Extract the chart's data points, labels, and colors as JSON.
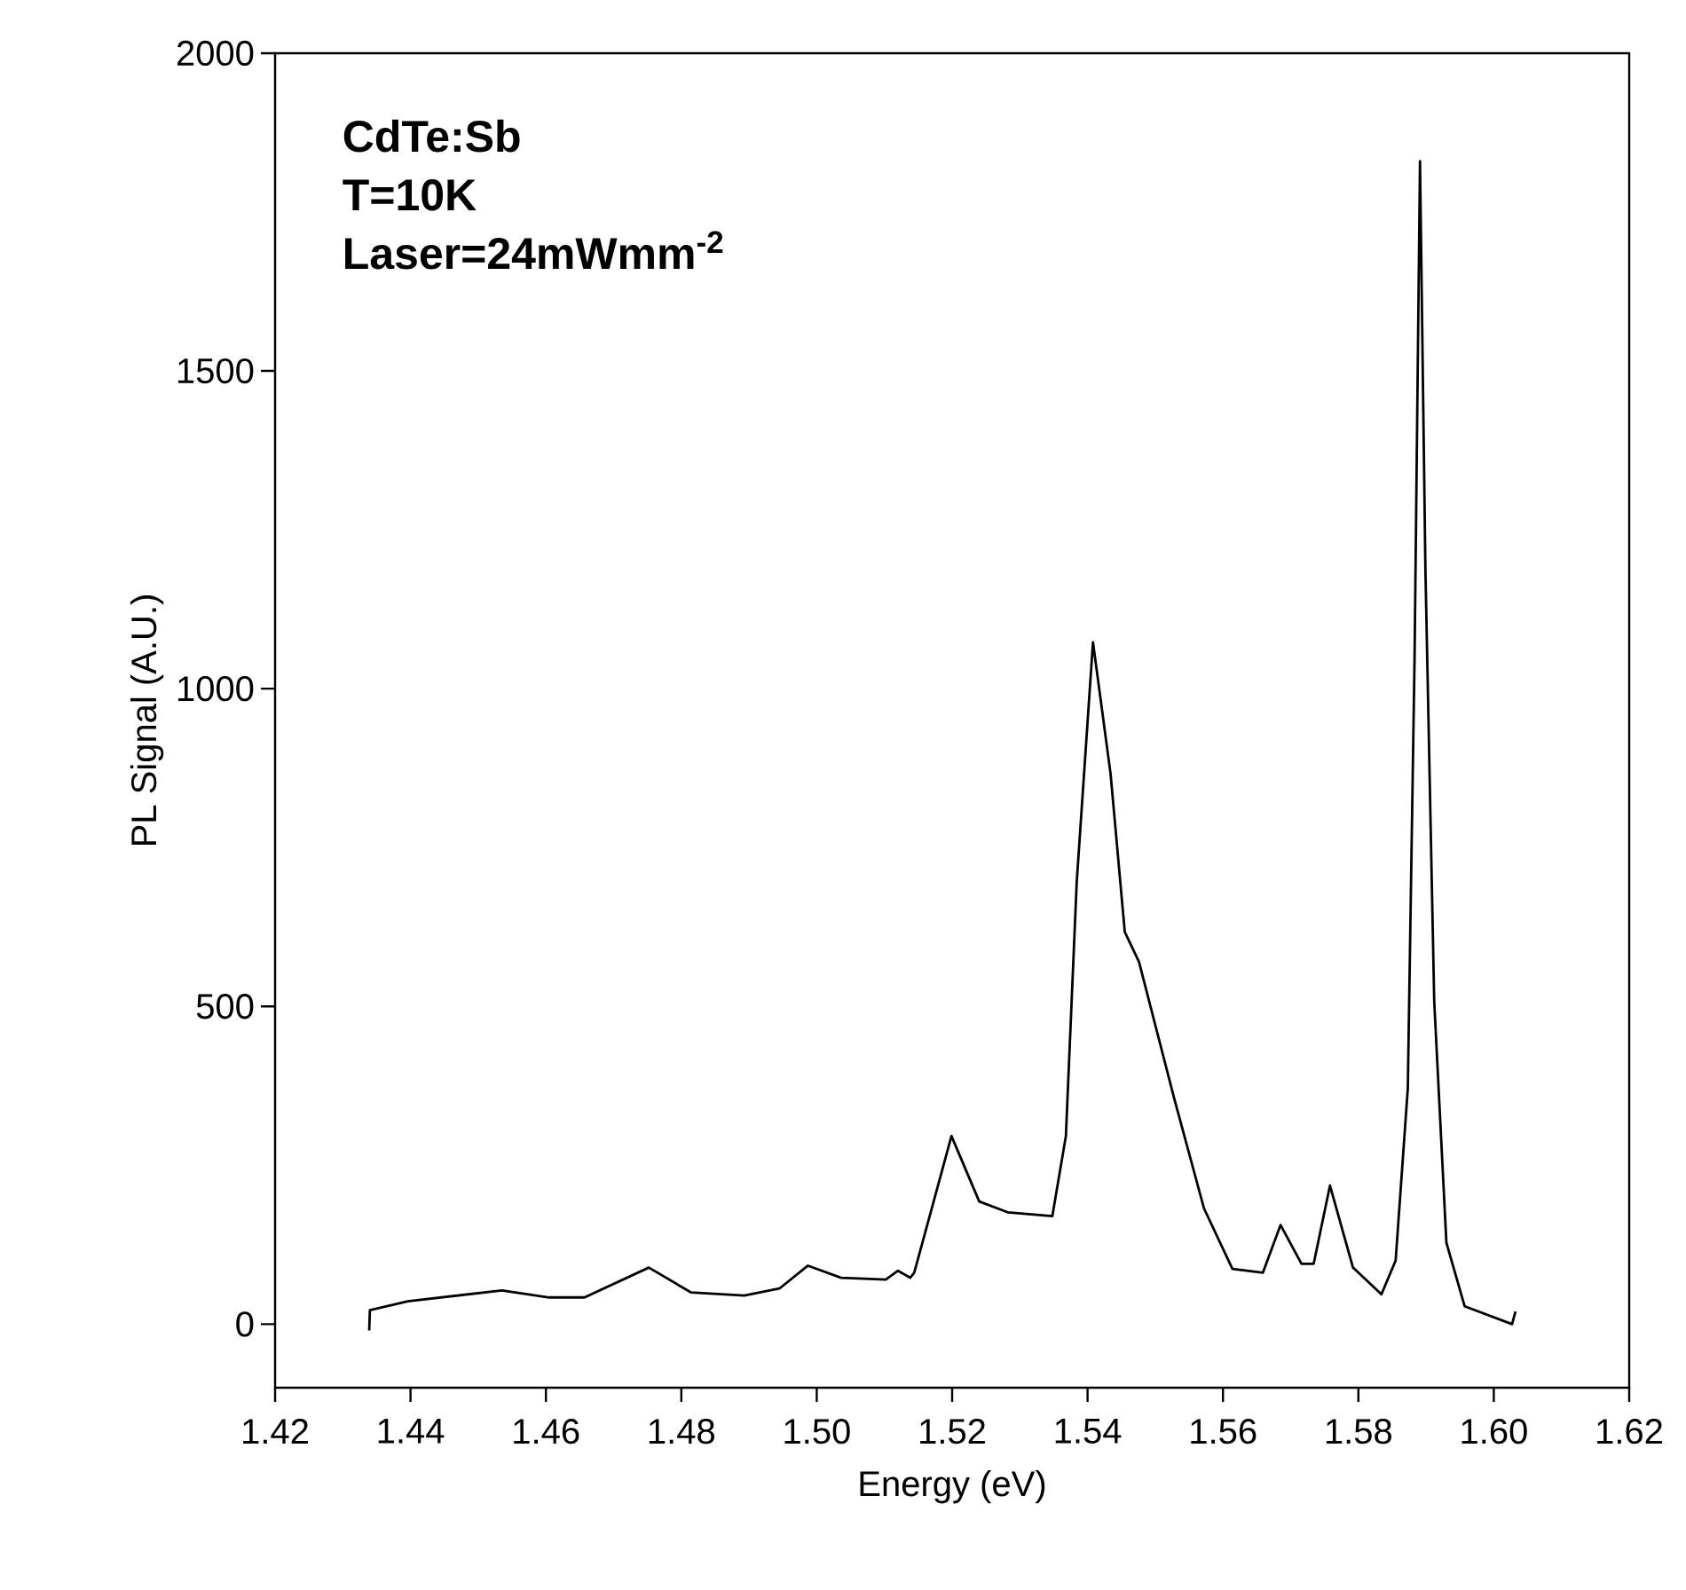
{
  "chart_data": {
    "type": "line",
    "xlabel": "Energy (eV)",
    "ylabel": "PL Signal (A.U.)",
    "annotations": [
      "CdTe:Sb",
      "T=10K",
      "Laser=24mWmm$^{-2}$"
    ],
    "xlim": [
      1.42,
      1.62
    ],
    "ylim": [
      -100,
      2000
    ],
    "xticks": [
      1.42,
      1.44,
      1.46,
      1.48,
      {
        "value": 1.5,
        "label": "1.50"
      },
      1.52,
      1.54,
      1.56,
      1.58,
      {
        "value": 1.6,
        "label": "1.60"
      },
      1.62
    ],
    "yticks": [
      0,
      500,
      1000,
      1500,
      2000
    ],
    "x": [
      1.4339,
      1.434,
      1.4396,
      1.4535,
      1.4605,
      1.4657,
      1.4752,
      1.4814,
      1.4893,
      1.4945,
      1.4987,
      1.5036,
      1.5102,
      1.512,
      1.5138,
      1.5144,
      1.5199,
      1.524,
      1.5282,
      1.5348,
      1.5368,
      1.5384,
      1.5408,
      1.5434,
      1.5455,
      1.5476,
      1.5528,
      1.5572,
      1.5614,
      1.5659,
      1.5685,
      1.5716,
      1.5734,
      1.5758,
      1.5792,
      1.5834,
      1.5855,
      1.5873,
      1.5883,
      1.5891,
      1.5899,
      1.5912,
      1.593,
      1.5957,
      1.6027,
      1.6032
    ],
    "values": [
      -10,
      22,
      36,
      53,
      42,
      42,
      89,
      50,
      45,
      56,
      92,
      73,
      70,
      84,
      73,
      81,
      296,
      193,
      176,
      170,
      296,
      696,
      1073,
      866,
      617,
      570,
      355,
      182,
      87,
      81,
      156,
      95,
      95,
      218,
      89,
      47,
      100,
      371,
      1050,
      1830,
      1187,
      508,
      128,
      28,
      0,
      20
    ],
    "color": "#000000"
  }
}
